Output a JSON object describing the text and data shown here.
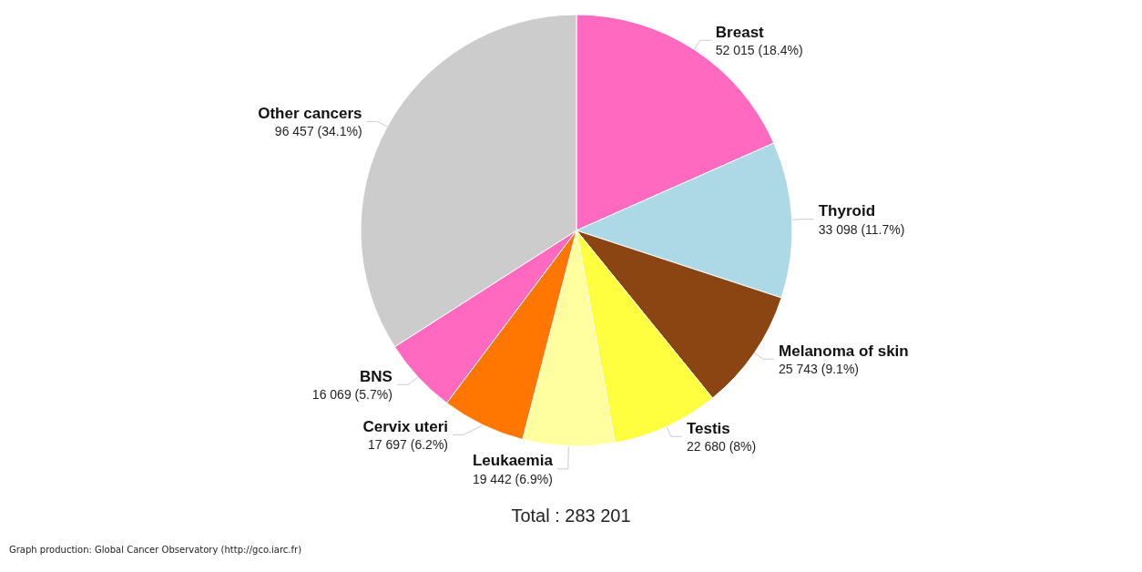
{
  "chart_data": {
    "type": "pie",
    "categories": [
      "Breast",
      "Thyroid",
      "Melanoma of skin",
      "Testis",
      "Leukaemia",
      "Cervix uteri",
      "BNS",
      "Other cancers"
    ],
    "values": [
      52015,
      33098,
      25743,
      22680,
      19442,
      17697,
      16069,
      96457
    ],
    "value_labels": [
      "52 015 (18.4%)",
      "33 098 (11.7%)",
      "25 743 (9.1%)",
      "22 680 (8%)",
      "19 442 (6.9%)",
      "17 697 (6.2%)",
      "16 069 (5.7%)",
      "96 457 (34.1%)"
    ],
    "colors": [
      "#ff69c0",
      "#add8e6",
      "#8b4513",
      "#ffff40",
      "#ffffa0",
      "#ff7700",
      "#ff69c0",
      "#cccccc"
    ],
    "annotations": [
      "Total : 283 201",
      "Graph production: Global Cancer Observatory (http://gco.iarc.fr)"
    ],
    "legend": false
  }
}
